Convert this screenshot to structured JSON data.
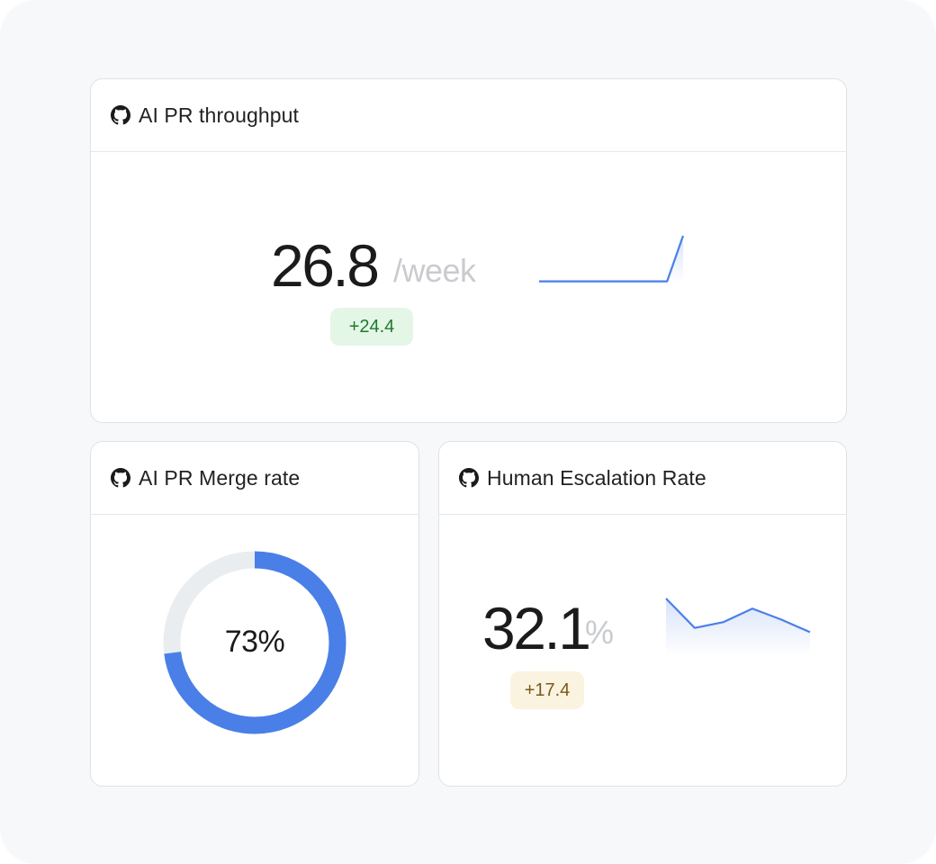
{
  "colors": {
    "accent": "#4a7fe8",
    "track": "#e9edf0",
    "positive_bg": "#e4f6e6",
    "positive_fg": "#1f7a2e",
    "warn_bg": "#faf3e0",
    "warn_fg": "#7a5a1c"
  },
  "cards": [
    {
      "icon": "github-icon",
      "title": "AI PR throughput",
      "value": "26.8",
      "unit": "/week",
      "delta": "+24.4",
      "trend": [
        2,
        2,
        2,
        2,
        2,
        2,
        2,
        2,
        2,
        12
      ]
    },
    {
      "icon": "github-icon",
      "title": "AI PR Merge rate",
      "value": "73%",
      "fraction": 0.73
    },
    {
      "icon": "github-icon",
      "title": "Human Escalation Rate",
      "value": "32.1",
      "unit": "%",
      "delta": "+17.4",
      "trend": [
        33,
        29.5,
        30.2,
        31.8,
        30.5,
        29
      ]
    }
  ]
}
